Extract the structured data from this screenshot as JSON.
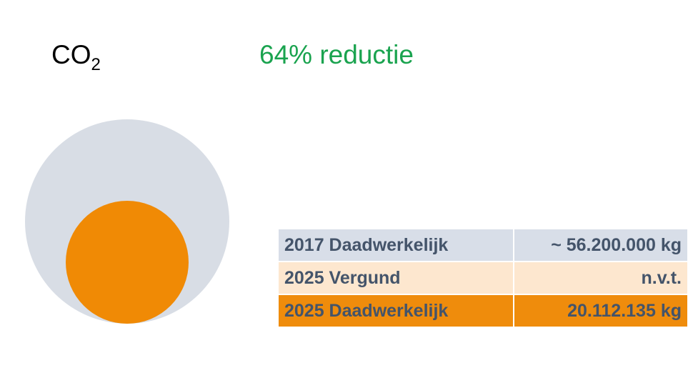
{
  "slide": {
    "title": "CO",
    "title_subscript": "2",
    "headline": "64% reductie",
    "table": {
      "rows": [
        [
          "2017 Daadwerkelijk",
          "~ 56.200.000 kg"
        ],
        [
          "2025 Vergund",
          "n.v.t."
        ],
        [
          "2025 Daadwerkelijk",
          "20.112.135 kg"
        ]
      ]
    }
  }
}
